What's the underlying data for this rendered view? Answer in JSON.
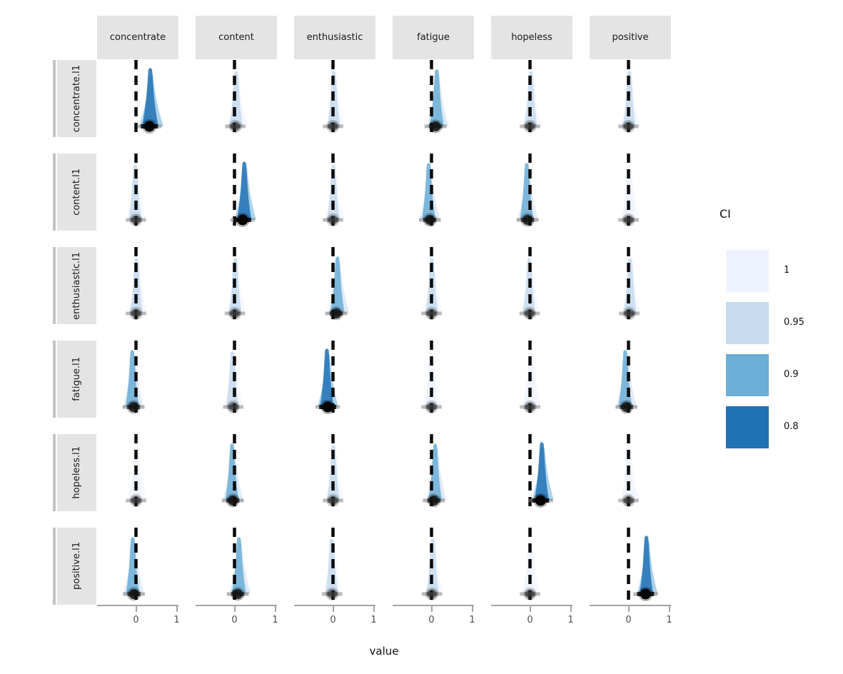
{
  "chart_data": {
    "type": "area",
    "subtype": "faceted-halfeye-density-grid",
    "xlabel": "value",
    "x_ticks": [
      "0",
      "1"
    ],
    "xlim": [
      -0.96,
      1.05
    ],
    "grid": "off",
    "columns": [
      "concentrate",
      "content",
      "enthusiastic",
      "fatigue",
      "hopeless",
      "positive"
    ],
    "rows": [
      "concentrate.l1",
      "content.l1",
      "enthusiastic.l1",
      "fatigue.l1",
      "hopeless.l1",
      "positive.l1"
    ],
    "legend": {
      "title": "CI",
      "position": "right",
      "levels": [
        {
          "label": "1",
          "color": "#eff3ff"
        },
        {
          "label": "0.95",
          "color": "#c6dbef"
        },
        {
          "label": "0.9",
          "color": "#6baed6"
        },
        {
          "label": "0.8",
          "color": "#2171b5"
        }
      ]
    },
    "style": {
      "strip_bg": "#e4e4e4",
      "strip_accent": "#c3c3c3",
      "zero_line_color": "#0a0a0a",
      "axis_color": "#a3a3a3",
      "tick_label_color": "#4d4d4d"
    },
    "cells": [
      [
        {
          "value": 0.33,
          "center": 0.35,
          "half_width": 0.2,
          "ci_level": "0.8",
          "dot": "black"
        },
        {
          "value": 0.02,
          "center": 0.04,
          "half_width": 0.17,
          "ci_level": "0.95",
          "dot": "gray"
        },
        {
          "value": 0.0,
          "center": 0.02,
          "half_width": 0.16,
          "ci_level": "0.95",
          "dot": "gray"
        },
        {
          "value": 0.1,
          "center": 0.13,
          "half_width": 0.18,
          "ci_level": "0.9",
          "dot": "dark"
        },
        {
          "value": 0.0,
          "center": 0.02,
          "half_width": 0.16,
          "ci_level": "0.95",
          "dot": "gray"
        },
        {
          "value": 0.0,
          "center": 0.02,
          "half_width": 0.16,
          "ci_level": "0.95",
          "dot": "gray"
        }
      ],
      [
        {
          "value": 0.0,
          "center": -0.02,
          "half_width": 0.16,
          "ci_level": "0.95",
          "dot": "gray"
        },
        {
          "value": 0.2,
          "center": 0.24,
          "half_width": 0.18,
          "ci_level": "0.8",
          "dot": "black"
        },
        {
          "value": 0.0,
          "center": 0.01,
          "half_width": 0.16,
          "ci_level": "0.95",
          "dot": "gray"
        },
        {
          "value": -0.04,
          "center": -0.07,
          "half_width": 0.17,
          "ci_level": "0.9",
          "dot": "dark"
        },
        {
          "value": -0.06,
          "center": -0.08,
          "half_width": 0.17,
          "ci_level": "0.9",
          "dot": "dark"
        },
        {
          "value": 0.0,
          "center": 0.01,
          "half_width": 0.16,
          "ci_level": "1",
          "dot": "gray"
        }
      ],
      [
        {
          "value": 0.0,
          "center": 0.01,
          "half_width": 0.16,
          "ci_level": "0.95",
          "dot": "gray"
        },
        {
          "value": 0.01,
          "center": 0.02,
          "half_width": 0.16,
          "ci_level": "0.95",
          "dot": "gray"
        },
        {
          "value": 0.08,
          "center": 0.11,
          "half_width": 0.18,
          "ci_level": "0.9",
          "dot": "dark"
        },
        {
          "value": 0.0,
          "center": 0.01,
          "half_width": 0.16,
          "ci_level": "0.95",
          "dot": "gray"
        },
        {
          "value": -0.01,
          "center": -0.02,
          "half_width": 0.16,
          "ci_level": "0.95",
          "dot": "gray"
        },
        {
          "value": 0.02,
          "center": 0.04,
          "half_width": 0.16,
          "ci_level": "0.95",
          "dot": "gray"
        }
      ],
      [
        {
          "value": -0.06,
          "center": -0.09,
          "half_width": 0.17,
          "ci_level": "0.9",
          "dot": "dark"
        },
        {
          "value": -0.03,
          "center": -0.05,
          "half_width": 0.16,
          "ci_level": "0.95",
          "dot": "gray"
        },
        {
          "value": -0.13,
          "center": -0.15,
          "half_width": 0.17,
          "ci_level": "0.8",
          "dot": "black"
        },
        {
          "value": 0.0,
          "center": -0.01,
          "half_width": 0.16,
          "ci_level": "1",
          "dot": "gray"
        },
        {
          "value": 0.0,
          "center": 0.01,
          "half_width": 0.16,
          "ci_level": "1",
          "dot": "gray"
        },
        {
          "value": -0.05,
          "center": -0.08,
          "half_width": 0.17,
          "ci_level": "0.9",
          "dot": "dark"
        }
      ],
      [
        {
          "value": 0.0,
          "center": 0.0,
          "half_width": 0.16,
          "ci_level": "1",
          "dot": "gray"
        },
        {
          "value": -0.04,
          "center": -0.06,
          "half_width": 0.17,
          "ci_level": "0.9",
          "dot": "dark"
        },
        {
          "value": 0.0,
          "center": 0.01,
          "half_width": 0.16,
          "ci_level": "0.95",
          "dot": "gray"
        },
        {
          "value": 0.06,
          "center": 0.09,
          "half_width": 0.17,
          "ci_level": "0.9",
          "dot": "dark"
        },
        {
          "value": 0.26,
          "center": 0.29,
          "half_width": 0.18,
          "ci_level": "0.8",
          "dot": "black"
        },
        {
          "value": 0.0,
          "center": 0.0,
          "half_width": 0.16,
          "ci_level": "1",
          "dot": "gray"
        }
      ],
      [
        {
          "value": -0.05,
          "center": -0.08,
          "half_width": 0.17,
          "ci_level": "0.9",
          "dot": "dark"
        },
        {
          "value": 0.08,
          "center": 0.11,
          "half_width": 0.18,
          "ci_level": "0.9",
          "dot": "dark"
        },
        {
          "value": -0.02,
          "center": -0.03,
          "half_width": 0.16,
          "ci_level": "0.95",
          "dot": "gray"
        },
        {
          "value": 0.01,
          "center": 0.03,
          "half_width": 0.16,
          "ci_level": "0.95",
          "dot": "gray"
        },
        {
          "value": 0.0,
          "center": 0.0,
          "half_width": 0.16,
          "ci_level": "1",
          "dot": "gray"
        },
        {
          "value": 0.42,
          "center": 0.44,
          "half_width": 0.17,
          "ci_level": "0.8",
          "dot": "black"
        }
      ]
    ]
  }
}
